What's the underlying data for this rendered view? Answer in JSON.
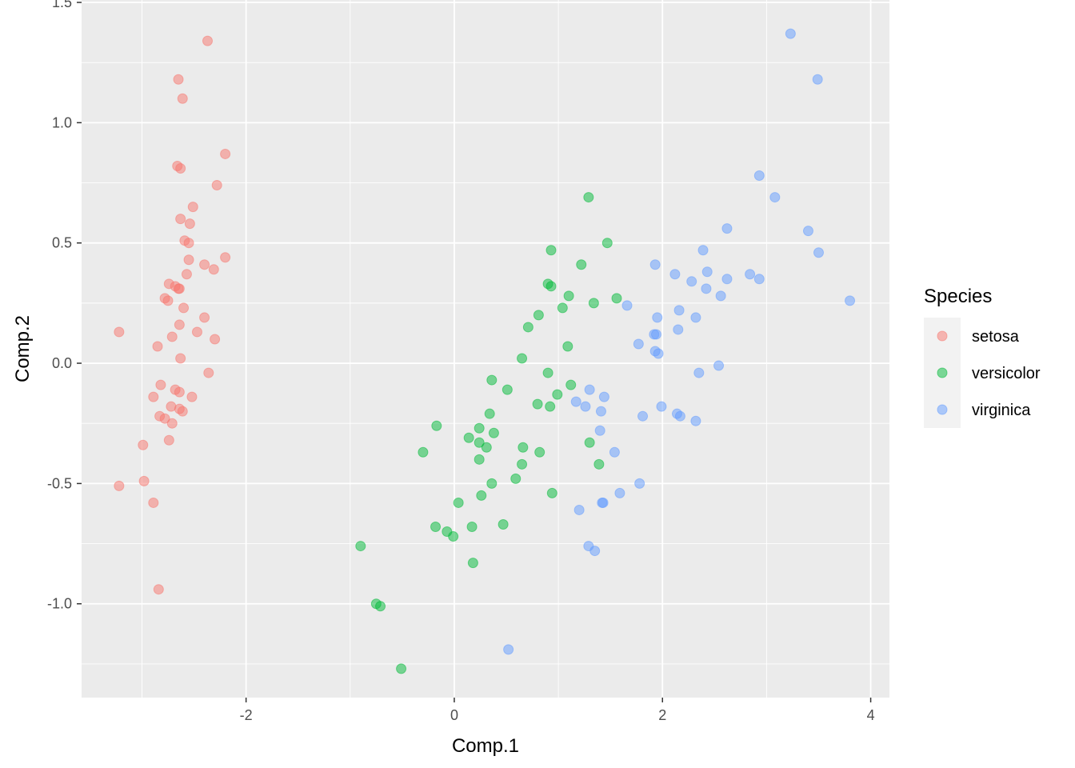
{
  "chart_data": {
    "type": "scatter",
    "xlabel": "Comp.1",
    "ylabel": "Comp.2",
    "xlim": [
      -3.58,
      4.18
    ],
    "ylim": [
      -1.39,
      1.51
    ],
    "x_ticks": [
      -2,
      0,
      2,
      4
    ],
    "x_tick_labels": [
      "-2",
      "0",
      "2",
      "4"
    ],
    "y_ticks": [
      -1.0,
      -0.5,
      0.0,
      0.5,
      1.0,
      1.5
    ],
    "y_tick_labels": [
      "-1.0",
      "-0.5",
      "0.0",
      "0.5",
      "1.0",
      "1.5"
    ],
    "grid": true,
    "panel_background": "#ebebeb",
    "point_alpha": 0.5,
    "legend": {
      "title": "Species",
      "placement": "right",
      "entries": [
        "setosa",
        "versicolor",
        "virginica"
      ]
    },
    "series": [
      {
        "name": "setosa",
        "color": "#f8766d",
        "points": [
          [
            -2.37,
            1.34
          ],
          [
            -2.65,
            1.18
          ],
          [
            -2.61,
            1.1
          ],
          [
            -2.2,
            0.87
          ],
          [
            -2.66,
            0.82
          ],
          [
            -2.63,
            0.81
          ],
          [
            -2.28,
            0.74
          ],
          [
            -2.51,
            0.65
          ],
          [
            -2.63,
            0.6
          ],
          [
            -2.54,
            0.58
          ],
          [
            -2.59,
            0.51
          ],
          [
            -2.55,
            0.5
          ],
          [
            -2.55,
            0.43
          ],
          [
            -2.2,
            0.44
          ],
          [
            -2.4,
            0.41
          ],
          [
            -2.31,
            0.39
          ],
          [
            -2.57,
            0.37
          ],
          [
            -2.74,
            0.33
          ],
          [
            -2.68,
            0.32
          ],
          [
            -2.65,
            0.31
          ],
          [
            -2.64,
            0.31
          ],
          [
            -2.78,
            0.27
          ],
          [
            -2.75,
            0.26
          ],
          [
            -2.6,
            0.23
          ],
          [
            -2.4,
            0.19
          ],
          [
            -2.64,
            0.16
          ],
          [
            -2.47,
            0.13
          ],
          [
            -3.22,
            0.13
          ],
          [
            -2.71,
            0.11
          ],
          [
            -2.3,
            0.1
          ],
          [
            -2.85,
            0.07
          ],
          [
            -2.63,
            0.02
          ],
          [
            -2.36,
            -0.04
          ],
          [
            -2.82,
            -0.09
          ],
          [
            -2.68,
            -0.11
          ],
          [
            -2.64,
            -0.12
          ],
          [
            -2.52,
            -0.14
          ],
          [
            -2.89,
            -0.14
          ],
          [
            -2.72,
            -0.18
          ],
          [
            -2.64,
            -0.19
          ],
          [
            -2.61,
            -0.2
          ],
          [
            -2.83,
            -0.22
          ],
          [
            -2.78,
            -0.23
          ],
          [
            -2.71,
            -0.25
          ],
          [
            -2.99,
            -0.34
          ],
          [
            -2.74,
            -0.32
          ],
          [
            -3.22,
            -0.51
          ],
          [
            -2.98,
            -0.49
          ],
          [
            -2.89,
            -0.58
          ],
          [
            -2.84,
            -0.94
          ]
        ]
      },
      {
        "name": "versicolor",
        "color": "#00ba38",
        "points": [
          [
            1.29,
            0.69
          ],
          [
            1.47,
            0.5
          ],
          [
            0.93,
            0.47
          ],
          [
            1.22,
            0.41
          ],
          [
            0.9,
            0.33
          ],
          [
            0.93,
            0.32
          ],
          [
            1.1,
            0.28
          ],
          [
            1.56,
            0.27
          ],
          [
            1.34,
            0.25
          ],
          [
            1.04,
            0.23
          ],
          [
            0.81,
            0.2
          ],
          [
            0.71,
            0.15
          ],
          [
            1.09,
            0.07
          ],
          [
            0.65,
            0.02
          ],
          [
            0.9,
            -0.04
          ],
          [
            0.36,
            -0.07
          ],
          [
            1.12,
            -0.09
          ],
          [
            0.51,
            -0.11
          ],
          [
            0.99,
            -0.13
          ],
          [
            0.8,
            -0.17
          ],
          [
            0.92,
            -0.18
          ],
          [
            0.34,
            -0.21
          ],
          [
            -0.17,
            -0.26
          ],
          [
            0.24,
            -0.27
          ],
          [
            0.38,
            -0.29
          ],
          [
            0.14,
            -0.31
          ],
          [
            0.24,
            -0.33
          ],
          [
            1.3,
            -0.33
          ],
          [
            0.31,
            -0.35
          ],
          [
            0.66,
            -0.35
          ],
          [
            -0.3,
            -0.37
          ],
          [
            0.82,
            -0.37
          ],
          [
            0.24,
            -0.4
          ],
          [
            0.65,
            -0.42
          ],
          [
            1.39,
            -0.42
          ],
          [
            0.59,
            -0.48
          ],
          [
            0.36,
            -0.5
          ],
          [
            0.94,
            -0.54
          ],
          [
            0.26,
            -0.55
          ],
          [
            0.04,
            -0.58
          ],
          [
            -0.18,
            -0.68
          ],
          [
            0.17,
            -0.68
          ],
          [
            0.47,
            -0.67
          ],
          [
            -0.07,
            -0.7
          ],
          [
            -0.01,
            -0.72
          ],
          [
            -0.9,
            -0.76
          ],
          [
            0.18,
            -0.83
          ],
          [
            -0.75,
            -1.0
          ],
          [
            -0.71,
            -1.01
          ],
          [
            -0.51,
            -1.27
          ]
        ]
      },
      {
        "name": "virginica",
        "color": "#619cff",
        "points": [
          [
            3.23,
            1.37
          ],
          [
            3.49,
            1.18
          ],
          [
            2.93,
            0.78
          ],
          [
            3.08,
            0.69
          ],
          [
            2.62,
            0.56
          ],
          [
            3.4,
            0.55
          ],
          [
            3.5,
            0.46
          ],
          [
            2.39,
            0.47
          ],
          [
            1.93,
            0.41
          ],
          [
            2.43,
            0.38
          ],
          [
            2.84,
            0.37
          ],
          [
            2.12,
            0.37
          ],
          [
            2.93,
            0.35
          ],
          [
            2.62,
            0.35
          ],
          [
            2.28,
            0.34
          ],
          [
            2.42,
            0.31
          ],
          [
            2.56,
            0.28
          ],
          [
            3.8,
            0.26
          ],
          [
            1.66,
            0.24
          ],
          [
            2.16,
            0.22
          ],
          [
            1.95,
            0.19
          ],
          [
            2.32,
            0.19
          ],
          [
            2.15,
            0.14
          ],
          [
            1.92,
            0.12
          ],
          [
            1.94,
            0.12
          ],
          [
            1.77,
            0.08
          ],
          [
            1.93,
            0.05
          ],
          [
            1.96,
            0.04
          ],
          [
            2.54,
            -0.01
          ],
          [
            2.35,
            -0.04
          ],
          [
            1.3,
            -0.11
          ],
          [
            1.44,
            -0.14
          ],
          [
            1.17,
            -0.16
          ],
          [
            1.26,
            -0.18
          ],
          [
            1.99,
            -0.18
          ],
          [
            1.41,
            -0.2
          ],
          [
            1.81,
            -0.22
          ],
          [
            2.14,
            -0.21
          ],
          [
            2.17,
            -0.22
          ],
          [
            2.32,
            -0.24
          ],
          [
            1.4,
            -0.28
          ],
          [
            1.54,
            -0.37
          ],
          [
            1.78,
            -0.5
          ],
          [
            1.59,
            -0.54
          ],
          [
            1.42,
            -0.58
          ],
          [
            1.43,
            -0.58
          ],
          [
            1.2,
            -0.61
          ],
          [
            1.29,
            -0.76
          ],
          [
            1.35,
            -0.78
          ],
          [
            0.52,
            -1.19
          ]
        ]
      }
    ]
  }
}
